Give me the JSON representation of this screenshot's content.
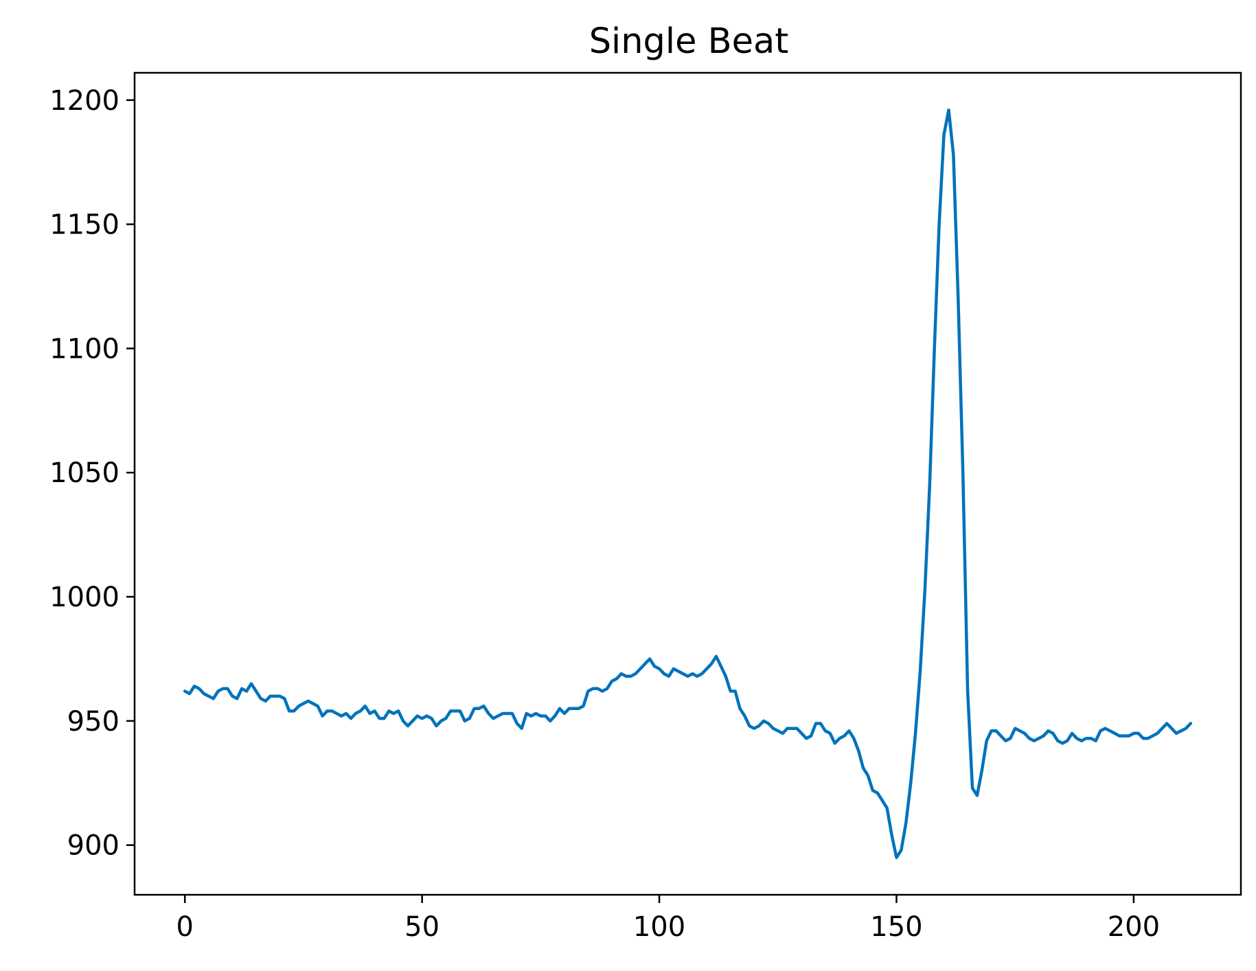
{
  "chart_data": {
    "type": "line",
    "title": "Single Beat",
    "xlabel": "",
    "ylabel": "",
    "xlim": [
      -10.6,
      222.6
    ],
    "ylim": [
      880,
      1211
    ],
    "x_ticks": [
      0,
      50,
      100,
      150,
      200
    ],
    "y_ticks": [
      900,
      950,
      1000,
      1050,
      1100,
      1150,
      1200
    ],
    "grid": false,
    "legend": "none",
    "line_color": "#0072BD",
    "series": [
      {
        "x_start": 0,
        "x_step": 1,
        "values": [
          962,
          961,
          964,
          963,
          961,
          960,
          959,
          962,
          963,
          963,
          960,
          959,
          963,
          962,
          965,
          962,
          959,
          958,
          960,
          960,
          960,
          959,
          954,
          954,
          956,
          957,
          958,
          957,
          956,
          952,
          954,
          954,
          953,
          952,
          953,
          951,
          953,
          954,
          956,
          953,
          954,
          951,
          951,
          954,
          953,
          954,
          950,
          948,
          950,
          952,
          951,
          952,
          951,
          948,
          950,
          951,
          954,
          954,
          954,
          950,
          951,
          955,
          955,
          956,
          953,
          951,
          952,
          953,
          953,
          953,
          949,
          947,
          953,
          952,
          953,
          952,
          952,
          950,
          952,
          955,
          953,
          955,
          955,
          955,
          956,
          962,
          963,
          963,
          962,
          963,
          966,
          967,
          969,
          968,
          968,
          969,
          971,
          973,
          975,
          972,
          971,
          969,
          968,
          971,
          970,
          969,
          968,
          969,
          968,
          969,
          971,
          973,
          976,
          972,
          968,
          962,
          962,
          955,
          952,
          948,
          947,
          948,
          950,
          949,
          947,
          946,
          945,
          947,
          947,
          947,
          945,
          943,
          944,
          949,
          949,
          946,
          945,
          941,
          943,
          944,
          946,
          943,
          938,
          931,
          928,
          922,
          921,
          918,
          915,
          904,
          895,
          898,
          909,
          925,
          945,
          970,
          1003,
          1045,
          1100,
          1150,
          1186,
          1196,
          1178,
          1120,
          1050,
          962,
          923,
          920,
          930,
          942,
          946,
          946,
          944,
          942,
          943,
          947,
          946,
          945,
          943,
          942,
          943,
          944,
          946,
          945,
          942,
          941,
          942,
          945,
          943,
          942,
          943,
          943,
          942,
          946,
          947,
          946,
          945,
          944,
          944,
          944,
          945,
          945,
          943,
          943,
          944,
          945,
          947,
          949,
          947,
          945,
          946,
          947,
          949
        ]
      }
    ]
  }
}
